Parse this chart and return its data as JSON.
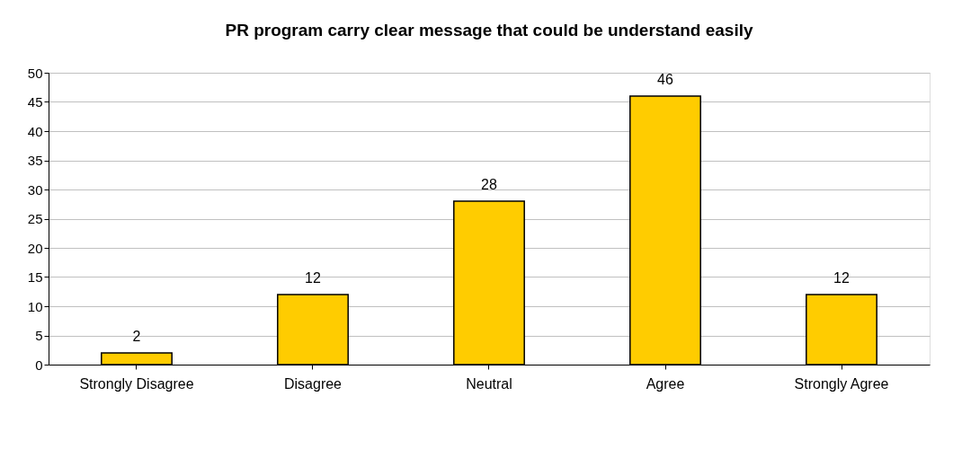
{
  "chart_data": {
    "type": "bar",
    "title": "PR program carry clear message that could be understand easily",
    "categories": [
      "Strongly Disagree",
      "Disagree",
      "Neutral",
      "Agree",
      "Strongly Agree"
    ],
    "values": [
      2,
      12,
      28,
      46,
      12
    ],
    "color": "#ffcc00",
    "ylim": [
      0,
      50
    ],
    "yticks": [
      0,
      5,
      10,
      15,
      20,
      25,
      30,
      35,
      40,
      45,
      50
    ],
    "grid": "y",
    "data_labels": true
  }
}
